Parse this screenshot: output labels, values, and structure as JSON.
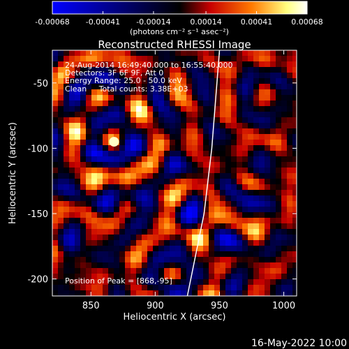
{
  "chart_data": {
    "type": "heatmap",
    "title": "Reconstructed RHESSI Image",
    "xlabel": "Heliocentric X (arcsec)",
    "ylabel": "Heliocentric Y (arcsec)",
    "xlim": [
      820,
      1010
    ],
    "ylim": [
      -213,
      -25
    ],
    "xticks": [
      850,
      900,
      950,
      1000
    ],
    "yticks": [
      -50,
      -100,
      -150,
      -200
    ],
    "colorbar": {
      "ticks": [
        "-0.00068",
        "-0.00041",
        "-0.00014",
        "0.00014",
        "0.00041",
        "0.00068"
      ],
      "range": [
        -0.00068,
        0.00068
      ],
      "unit_label": "(photons cm⁻² s⁻¹ asec⁻²)",
      "colormap": [
        "#0000ff",
        "#000000",
        "#c80000",
        "#ff7800",
        "#ffff80",
        "#ffffff"
      ]
    },
    "info_lines": [
      "24-Aug-2014 16:49:40.000 to 16:55:40.000",
      "Detectors: 3F 6F 9F, Att 0",
      "Energy Range: 25.0 - 50.0 keV",
      "Clean     Total counts: 3.38E+03"
    ],
    "peak_label": "Position of Peak = [868,-95]",
    "peak_position": [
      868,
      -95
    ],
    "limb_line": [
      [
        925,
        -213
      ],
      [
        938,
        -150
      ],
      [
        944,
        -100
      ],
      [
        950,
        -25
      ]
    ],
    "timestamp": "16-May-2022 10:00"
  }
}
